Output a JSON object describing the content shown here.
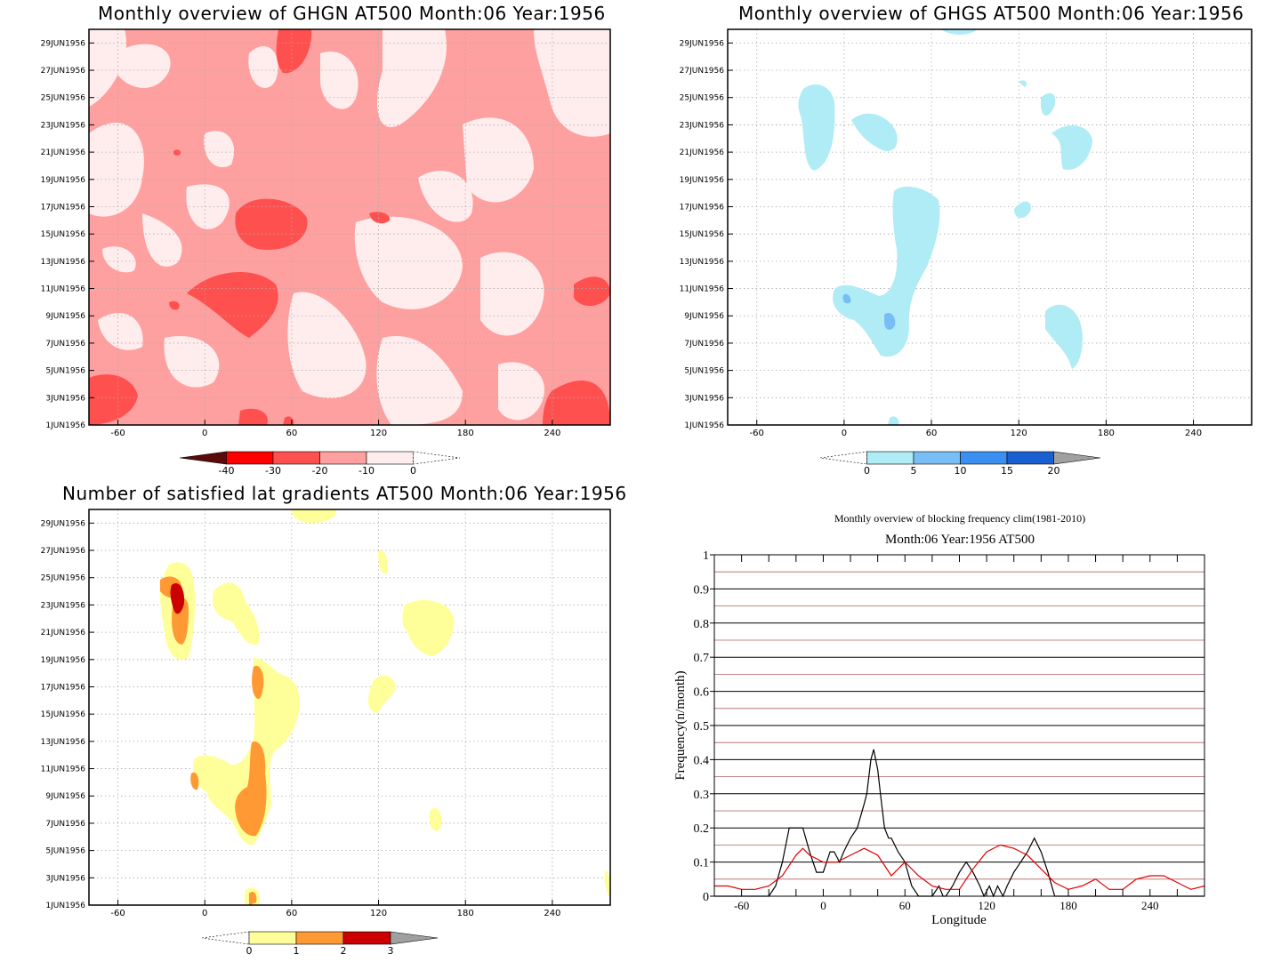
{
  "panels": {
    "ghgn": {
      "title": "Monthly overview of GHGN AT500 Month:06 Year:1956",
      "y_ticks": [
        "1JUN1956",
        "3JUN1956",
        "5JUN1956",
        "7JUN1956",
        "9JUN1956",
        "11JUN1956",
        "13JUN1956",
        "15JUN1956",
        "17JUN1956",
        "19JUN1956",
        "21JUN1956",
        "23JUN1956",
        "25JUN1956",
        "27JUN1956",
        "29JUN1956"
      ],
      "x_ticks": [
        "-60",
        "0",
        "60",
        "120",
        "180",
        "240"
      ],
      "colorbar": {
        "labels": [
          "-40",
          "-30",
          "-20",
          "-10",
          "0"
        ],
        "colors": [
          "#5a0a0a",
          "#ff0000",
          "#ff5050",
          "#ffa0a0",
          "#ffeded"
        ]
      }
    },
    "ghgs": {
      "title": "Monthly overview of GHGS AT500 Month:06 Year:1956",
      "y_ticks": [
        "1JUN1956",
        "3JUN1956",
        "5JUN1956",
        "7JUN1956",
        "9JUN1956",
        "11JUN1956",
        "13JUN1956",
        "15JUN1956",
        "17JUN1956",
        "19JUN1956",
        "21JUN1956",
        "23JUN1956",
        "25JUN1956",
        "27JUN1956",
        "29JUN1956"
      ],
      "x_ticks": [
        "-60",
        "0",
        "60",
        "120",
        "180",
        "240"
      ],
      "colorbar": {
        "labels": [
          "0",
          "5",
          "10",
          "15",
          "20"
        ],
        "colors": [
          "#b0ecf5",
          "#78bef5",
          "#3a8ff0",
          "#1a5fd0",
          "#a0a0a0"
        ]
      }
    },
    "satisfied": {
      "title": "Number of satisfied lat gradients AT500 Month:06 Year:1956",
      "y_ticks": [
        "1JUN1956",
        "3JUN1956",
        "5JUN1956",
        "7JUN1956",
        "9JUN1956",
        "11JUN1956",
        "13JUN1956",
        "15JUN1956",
        "17JUN1956",
        "19JUN1956",
        "21JUN1956",
        "23JUN1956",
        "25JUN1956",
        "27JUN1956",
        "29JUN1956"
      ],
      "x_ticks": [
        "-60",
        "0",
        "60",
        "120",
        "180",
        "240"
      ],
      "colorbar": {
        "labels": [
          "0",
          "1",
          "2",
          "3"
        ],
        "colors": [
          "#ffff99",
          "#ff9933",
          "#cc0000",
          "#a0a0a0"
        ]
      }
    },
    "frequency": {
      "title": "Monthly overview of blocking frequency clim(1981-2010)",
      "subtitle": "Month:06 Year:1956  AT500",
      "ylabel": "Frequency(n/month)",
      "xlabel": "Longitude",
      "y_ticks": [
        "0",
        "0.1",
        "0.2",
        "0.3",
        "0.4",
        "0.5",
        "0.6",
        "0.7",
        "0.8",
        "0.9",
        "1"
      ],
      "x_ticks": [
        "-60",
        "0",
        "60",
        "120",
        "180",
        "240"
      ]
    }
  },
  "chart_data": [
    {
      "type": "heatmap",
      "title": "Monthly overview of GHGN AT500 Month:06 Year:1956",
      "xlabel": "",
      "ylabel": "",
      "xlim": [
        -80,
        280
      ],
      "ylim": [
        "1JUN1956",
        "30JUN1956"
      ],
      "legend": {
        "levels": [
          -40,
          -30,
          -20,
          -10,
          0
        ],
        "position": "bottom"
      }
    },
    {
      "type": "heatmap",
      "title": "Monthly overview of GHGS AT500 Month:06 Year:1956",
      "xlabel": "",
      "ylabel": "",
      "xlim": [
        -80,
        280
      ],
      "ylim": [
        "1JUN1956",
        "30JUN1956"
      ],
      "legend": {
        "levels": [
          0,
          5,
          10,
          15,
          20
        ],
        "position": "bottom"
      }
    },
    {
      "type": "heatmap",
      "title": "Number of satisfied lat gradients AT500 Month:06 Year:1956",
      "xlabel": "",
      "ylabel": "",
      "xlim": [
        -80,
        280
      ],
      "ylim": [
        "1JUN1956",
        "30JUN1956"
      ],
      "legend": {
        "levels": [
          0,
          1,
          2,
          3
        ],
        "position": "bottom"
      }
    },
    {
      "type": "line",
      "title": "Monthly overview of blocking frequency clim(1981-2010)",
      "subtitle": "Month:06 Year:1956  AT500",
      "xlabel": "Longitude",
      "ylabel": "Frequency(n/month)",
      "xlim": [
        -80,
        280
      ],
      "ylim": [
        0,
        1
      ],
      "grid": true,
      "series": [
        {
          "name": "",
          "color": "#000000",
          "x": [
            -80,
            -40,
            -35,
            -30,
            -25,
            -20,
            -15,
            -10,
            -5,
            0,
            5,
            8,
            12,
            15,
            20,
            25,
            30,
            32,
            35,
            37,
            40,
            42,
            45,
            48,
            50,
            55,
            60,
            65,
            70,
            75,
            80,
            85,
            88,
            90,
            95,
            100,
            105,
            110,
            115,
            118,
            122,
            125,
            128,
            132,
            135,
            140,
            145,
            150,
            155,
            160,
            165,
            170,
            175,
            180,
            280
          ],
          "values": [
            0,
            0,
            0.03,
            0.1,
            0.2,
            0.2,
            0.2,
            0.13,
            0.07,
            0.07,
            0.13,
            0.13,
            0.1,
            0.13,
            0.17,
            0.2,
            0.27,
            0.3,
            0.4,
            0.43,
            0.37,
            0.3,
            0.2,
            0.17,
            0.17,
            0.13,
            0.1,
            0.03,
            0,
            0,
            0,
            0.03,
            0,
            0,
            0.03,
            0.07,
            0.1,
            0.07,
            0.03,
            0,
            0.03,
            0,
            0.03,
            0,
            0.03,
            0.07,
            0.1,
            0.13,
            0.17,
            0.13,
            0.07,
            0,
            0,
            0,
            0
          ]
        },
        {
          "name": "",
          "color": "#e00000",
          "x": [
            -80,
            -70,
            -60,
            -50,
            -40,
            -30,
            -20,
            -15,
            -10,
            0,
            10,
            20,
            30,
            40,
            50,
            60,
            70,
            80,
            90,
            100,
            110,
            120,
            130,
            140,
            150,
            160,
            170,
            180,
            190,
            200,
            210,
            220,
            230,
            240,
            250,
            260,
            270,
            280
          ],
          "values": [
            0.03,
            0.03,
            0.02,
            0.02,
            0.03,
            0.06,
            0.12,
            0.14,
            0.12,
            0.1,
            0.1,
            0.12,
            0.14,
            0.12,
            0.06,
            0.1,
            0.06,
            0.03,
            0.02,
            0.02,
            0.08,
            0.13,
            0.15,
            0.14,
            0.12,
            0.08,
            0.04,
            0.02,
            0.03,
            0.05,
            0.02,
            0.02,
            0.05,
            0.06,
            0.06,
            0.04,
            0.02,
            0.03
          ]
        }
      ]
    }
  ]
}
